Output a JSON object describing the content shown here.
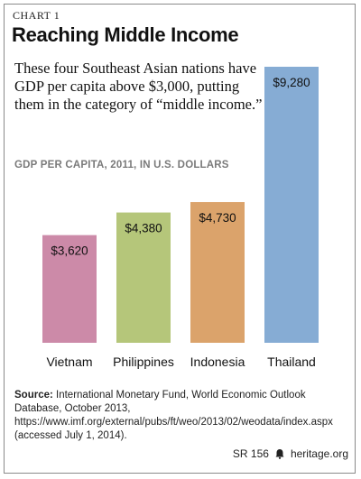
{
  "header": {
    "chart_label": "CHART 1",
    "title": "Reaching Middle Income",
    "subtitle": "These four Southeast Asian nations have GDP per capita above $3,000, putting them in the category of “middle income.”"
  },
  "chart_data": {
    "type": "bar",
    "title": "Reaching Middle Income",
    "ylabel": "GDP PER CAPITA, 2011, IN U.S. DOLLARS",
    "xlabel": "",
    "categories": [
      "Vietnam",
      "Philippines",
      "Indonesia",
      "Thailand"
    ],
    "values": [
      3620,
      4380,
      4730,
      9280
    ],
    "value_labels": [
      "$3,620",
      "$4,380",
      "$4,730",
      "$9,280"
    ],
    "colors": [
      "#cc8aa8",
      "#b5c67a",
      "#dba36b",
      "#86acd4"
    ],
    "ylim": [
      0,
      9280
    ],
    "grid": false,
    "legend": "none"
  },
  "source": {
    "label": "Source:",
    "text": " International Monetary Fund, World Economic Outlook Database, October 2013, https://www.imf.org/external/pubs/ft/weo/2013/02/weodata/index.aspx (accessed July 1, 2014)."
  },
  "footer": {
    "report_id": "SR 156",
    "site": "heritage.org",
    "icon": "bell-icon"
  }
}
